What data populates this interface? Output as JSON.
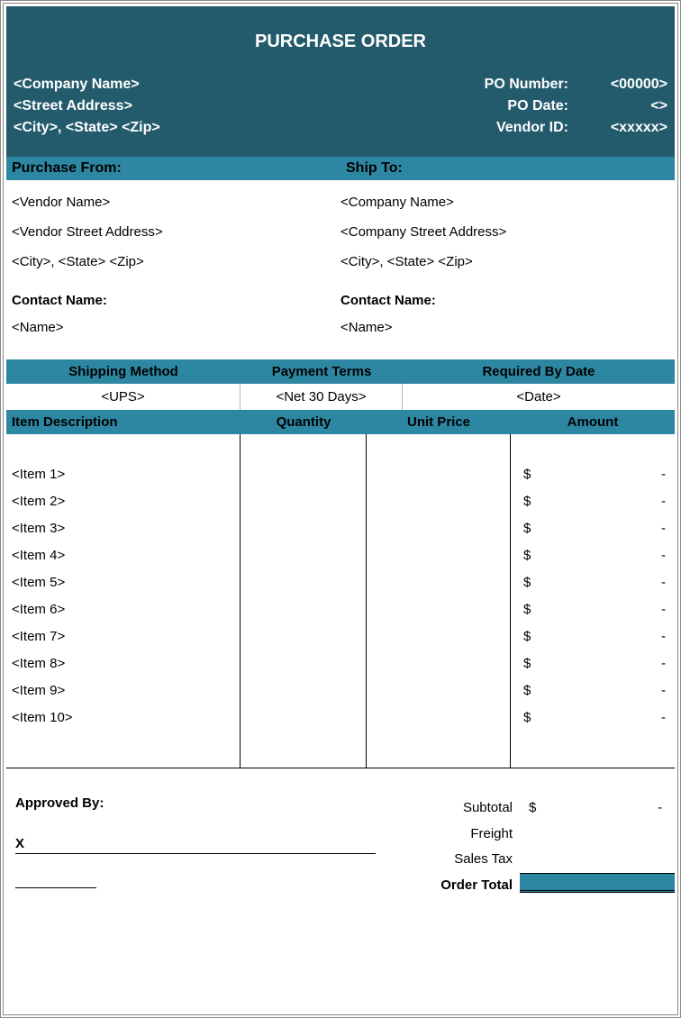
{
  "colors": {
    "header_bg": "#245b6c",
    "accent_bg": "#2d87a3",
    "text_light": "#ffffff",
    "text_dark": "#000000",
    "border": "#000000"
  },
  "title": "PURCHASE ORDER",
  "company": {
    "name": "<Company Name>",
    "street": "<Street Address>",
    "csz": "<City>, <State> <Zip>"
  },
  "po_labels": {
    "number": "PO Number:",
    "date": "PO Date:",
    "vendor_id": "Vendor ID:"
  },
  "po_values": {
    "number": "<00000>",
    "date": "<>",
    "vendor_id": "<xxxxx>"
  },
  "purchase_from": {
    "heading": "Purchase From:",
    "name": "<Vendor Name>",
    "street": "<Vendor Street Address>",
    "csz": "<City>, <State> <Zip>"
  },
  "ship_to": {
    "heading": "Ship To:",
    "name": "<Company Name>",
    "street": "<Company Street Address>",
    "csz": "<City>, <State> <Zip>"
  },
  "contact": {
    "label": "Contact Name:",
    "left_name": "<Name>",
    "right_name": "<Name>"
  },
  "shipping": {
    "headers": {
      "method": "Shipping Method",
      "terms": "Payment Terms",
      "required": "Required By Date"
    },
    "values": {
      "method": "<UPS>",
      "terms": "<Net 30 Days>",
      "required": "<Date>"
    }
  },
  "item_headers": {
    "desc": "Item Description",
    "qty": "Quantity",
    "unit": "Unit Price",
    "amount": "Amount"
  },
  "items": [
    {
      "desc": "<Item 1>",
      "currency": "$",
      "amount": "-"
    },
    {
      "desc": "<Item 2>",
      "currency": "$",
      "amount": "-"
    },
    {
      "desc": "<Item 3>",
      "currency": "$",
      "amount": "-"
    },
    {
      "desc": "<Item 4>",
      "currency": "$",
      "amount": "-"
    },
    {
      "desc": "<Item 5>",
      "currency": "$",
      "amount": "-"
    },
    {
      "desc": "<Item 6>",
      "currency": "$",
      "amount": "-"
    },
    {
      "desc": "<Item 7>",
      "currency": "$",
      "amount": "-"
    },
    {
      "desc": "<Item 8>",
      "currency": "$",
      "amount": "-"
    },
    {
      "desc": "<Item 9>",
      "currency": "$",
      "amount": "-"
    },
    {
      "desc": "<Item 10>",
      "currency": "$",
      "amount": "-"
    }
  ],
  "footer": {
    "approved_by": "Approved By:",
    "sig_prefix": "X",
    "subtotal_label": "Subtotal",
    "subtotal_currency": "$",
    "subtotal_value": "-",
    "freight_label": "Freight",
    "tax_label": "Sales Tax",
    "order_total_label": "Order Total"
  }
}
